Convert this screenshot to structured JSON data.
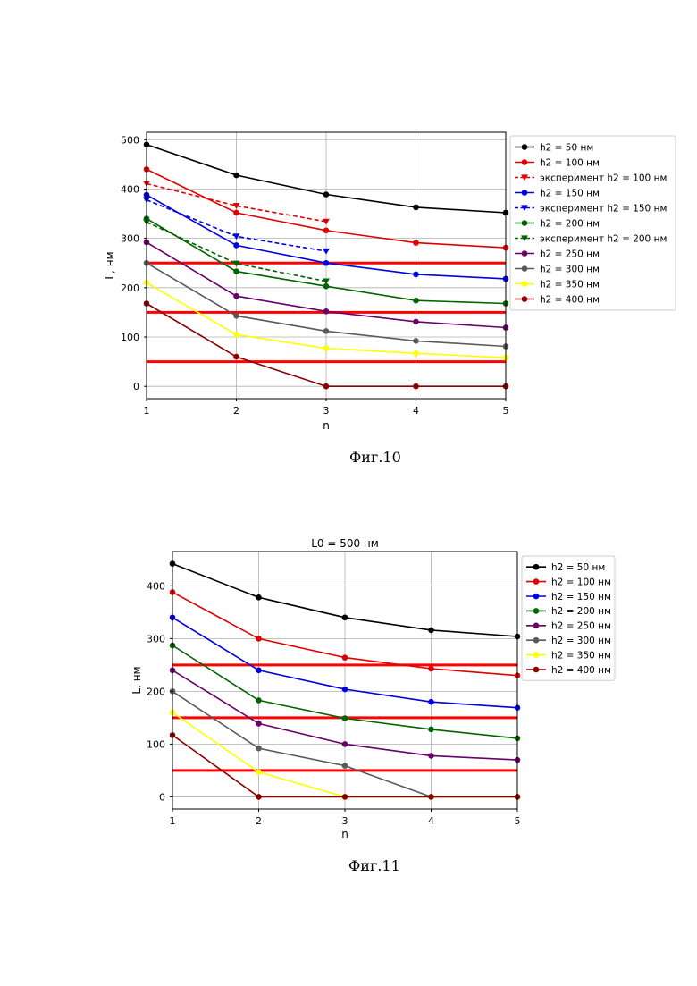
{
  "captions": {
    "fig10": "Фиг.10",
    "fig11": "Фиг.11"
  },
  "chart_data": [
    {
      "type": "line",
      "title": "",
      "xlabel": "n",
      "ylabel": "L, нм",
      "xlim": [
        1,
        5
      ],
      "ylim": [
        -25,
        515
      ],
      "xticks": [
        1,
        2,
        3,
        4,
        5
      ],
      "yticks": [
        0,
        100,
        200,
        300,
        400,
        500
      ],
      "grid": true,
      "legend_position": "right-outside-top",
      "series": [
        {
          "name": "h2 = 50 нм",
          "color": "#000000",
          "style": "solid",
          "marker": "circle",
          "x": [
            1,
            2,
            3,
            4,
            5
          ],
          "y": [
            490,
            428,
            389,
            363,
            352
          ]
        },
        {
          "name": "h2 = 100 нм",
          "color": "#e00000",
          "style": "solid",
          "marker": "circle",
          "x": [
            1,
            2,
            3,
            4,
            5
          ],
          "y": [
            440,
            352,
            316,
            291,
            281
          ]
        },
        {
          "name": "эксперимент h2 = 100 нм",
          "color": "#e00000",
          "style": "dashed",
          "marker": "triangle-down",
          "x": [
            1,
            2,
            3
          ],
          "y": [
            411,
            366,
            334
          ]
        },
        {
          "name": "h2 = 150 нм",
          "color": "#0000e0",
          "style": "solid",
          "marker": "circle",
          "x": [
            1,
            2,
            3,
            4,
            5
          ],
          "y": [
            388,
            286,
            250,
            227,
            218
          ]
        },
        {
          "name": "эксперимент h2 = 150 нм",
          "color": "#0000e0",
          "style": "dashed",
          "marker": "triangle-down",
          "x": [
            1,
            2,
            3
          ],
          "y": [
            378,
            304,
            274
          ]
        },
        {
          "name": "h2 = 200 нм",
          "color": "#006400",
          "style": "solid",
          "marker": "circle",
          "x": [
            1,
            2,
            3,
            4,
            5
          ],
          "y": [
            340,
            233,
            203,
            174,
            168
          ]
        },
        {
          "name": "эксперимент h2 = 200 нм",
          "color": "#006400",
          "style": "dashed",
          "marker": "triangle-down",
          "x": [
            1,
            2,
            3
          ],
          "y": [
            333,
            249,
            213
          ]
        },
        {
          "name": "h2 = 250 нм",
          "color": "#6a006a",
          "style": "solid",
          "marker": "circle",
          "x": [
            1,
            2,
            3,
            4,
            5
          ],
          "y": [
            292,
            183,
            152,
            131,
            119
          ]
        },
        {
          "name": "h2 = 300 нм",
          "color": "#5a5a5a",
          "style": "solid",
          "marker": "circle",
          "x": [
            1,
            2,
            3,
            4,
            5
          ],
          "y": [
            250,
            143,
            112,
            92,
            81
          ]
        },
        {
          "name": "h2 = 350 нм",
          "color": "#ffff00",
          "style": "solid",
          "marker": "circle",
          "x": [
            1,
            2,
            3,
            4,
            5
          ],
          "y": [
            210,
            105,
            77,
            67,
            58
          ]
        },
        {
          "name": "h2 = 400 нм",
          "color": "#8b0000",
          "style": "solid",
          "marker": "circle",
          "x": [
            1,
            2,
            3,
            4,
            5
          ],
          "y": [
            168,
            60,
            0,
            0,
            0
          ]
        }
      ],
      "reference_lines": {
        "color": "#ff0000",
        "y": [
          250,
          150,
          50
        ]
      }
    },
    {
      "type": "line",
      "title": "L0 = 500 нм",
      "xlabel": "n",
      "ylabel": "L, нм",
      "xlim": [
        1,
        5
      ],
      "ylim": [
        -23,
        465
      ],
      "xticks": [
        1,
        2,
        3,
        4,
        5
      ],
      "yticks": [
        0,
        100,
        200,
        300,
        400
      ],
      "grid": true,
      "legend_position": "right-outside-top",
      "series": [
        {
          "name": "h2 = 50 нм",
          "color": "#000000",
          "style": "solid",
          "marker": "circle",
          "x": [
            1,
            2,
            3,
            4,
            5
          ],
          "y": [
            442,
            378,
            340,
            316,
            304
          ]
        },
        {
          "name": "h2 = 100 нм",
          "color": "#e00000",
          "style": "solid",
          "marker": "circle",
          "x": [
            1,
            2,
            3,
            4,
            5
          ],
          "y": [
            388,
            300,
            264,
            243,
            230
          ]
        },
        {
          "name": "h2 = 150 нм",
          "color": "#0000e0",
          "style": "solid",
          "marker": "circle",
          "x": [
            1,
            2,
            3,
            4,
            5
          ],
          "y": [
            340,
            240,
            204,
            180,
            169
          ]
        },
        {
          "name": "h2 = 200 нм",
          "color": "#006400",
          "style": "solid",
          "marker": "circle",
          "x": [
            1,
            2,
            3,
            4,
            5
          ],
          "y": [
            287,
            183,
            149,
            128,
            111
          ]
        },
        {
          "name": "h2 = 250 нм",
          "color": "#6a006a",
          "style": "solid",
          "marker": "circle",
          "x": [
            1,
            2,
            3,
            4,
            5
          ],
          "y": [
            240,
            139,
            100,
            78,
            70
          ]
        },
        {
          "name": "h2 = 300 нм",
          "color": "#5a5a5a",
          "style": "solid",
          "marker": "circle",
          "x": [
            1,
            2,
            3,
            4,
            5
          ],
          "y": [
            200,
            92,
            59,
            0,
            0
          ]
        },
        {
          "name": "h2 = 350 нм",
          "color": "#ffff00",
          "style": "solid",
          "marker": "circle",
          "x": [
            1,
            2,
            3,
            4,
            5
          ],
          "y": [
            160,
            47,
            0,
            0,
            0
          ]
        },
        {
          "name": "h2 = 400 нм",
          "color": "#8b0000",
          "style": "solid",
          "marker": "circle",
          "x": [
            1,
            2,
            3,
            4,
            5
          ],
          "y": [
            117,
            0,
            0,
            0,
            0
          ]
        }
      ],
      "reference_lines": {
        "color": "#ff0000",
        "y": [
          250,
          150,
          50
        ]
      }
    }
  ]
}
